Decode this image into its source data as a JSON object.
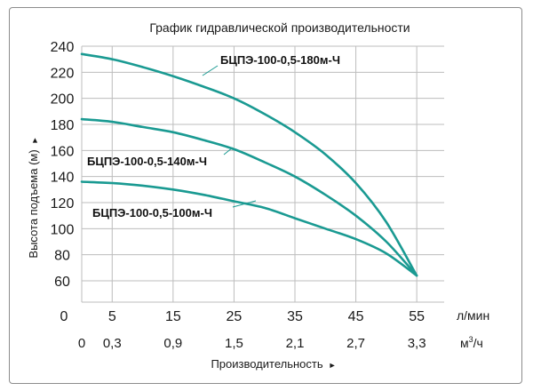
{
  "chart_data": {
    "type": "line",
    "title": "График гидравлической производительности",
    "ylabel": "Высота подъема (м)",
    "xlabel": "Производительность",
    "ylim": [
      60,
      240
    ],
    "yticks": [
      "240",
      "220",
      "200",
      "180",
      "160",
      "140",
      "120",
      "100",
      "80",
      "60"
    ],
    "y_zero_label": "0",
    "x_lpm_ticks": [
      "5",
      "15",
      "25",
      "35",
      "45",
      "55"
    ],
    "x_lpm_unit": "л/мин",
    "x_m3h_ticks": [
      "0",
      "0,3",
      "0,9",
      "1,5",
      "2,1",
      "2,7",
      "3,3"
    ],
    "x_m3h_unit_base": "м",
    "x_m3h_unit_sup": "3",
    "x_m3h_unit_tail": "/ч",
    "grid": true,
    "series": [
      {
        "name": "БЦПЭ-100-0,5-180м-Ч",
        "x": [
          0,
          5,
          10,
          15,
          20,
          25,
          30,
          35,
          40,
          45,
          50,
          55
        ],
        "y": [
          234,
          230,
          224,
          217,
          209,
          200,
          188,
          174,
          157,
          135,
          105,
          64
        ]
      },
      {
        "name": "БЦПЭ-100-0,5-140м-Ч",
        "x": [
          0,
          5,
          10,
          15,
          20,
          25,
          30,
          35,
          40,
          45,
          50,
          55
        ],
        "y": [
          184,
          182,
          178,
          174,
          168,
          161,
          151,
          140,
          126,
          110,
          90,
          64
        ]
      },
      {
        "name": "БЦПЭ-100-0,5-100м-Ч",
        "x": [
          0,
          5,
          10,
          15,
          20,
          25,
          30,
          35,
          40,
          45,
          50,
          55
        ],
        "y": [
          136,
          135,
          133,
          130,
          126,
          121,
          116,
          108,
          100,
          92,
          81,
          64
        ]
      }
    ]
  }
}
